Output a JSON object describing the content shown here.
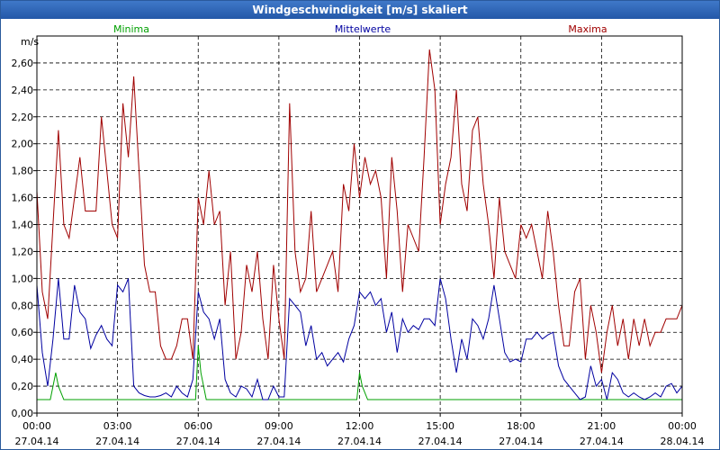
{
  "window": {
    "title": "Windgeschwindigkeit [m/s] skaliert"
  },
  "colors": {
    "minima": "#00a000",
    "mittelwerte": "#0000a0",
    "maxima": "#a00000",
    "grid": "#000000",
    "titlebar": "#2a5fae"
  },
  "chart_data": {
    "type": "line",
    "title": "Windgeschwindigkeit [m/s] skaliert",
    "ylabel": "m/s",
    "xlabel": "",
    "ylim": [
      0,
      2.8
    ],
    "xlim_hours": [
      0,
      24
    ],
    "grid": true,
    "legend_placement": "top",
    "y_ticks": [
      "0,00",
      "0,20",
      "0,40",
      "0,60",
      "0,80",
      "1,00",
      "1,20",
      "1,40",
      "1,60",
      "1,80",
      "2,00",
      "2,20",
      "2,40",
      "2,60"
    ],
    "x_ticks": [
      {
        "time": "00:00",
        "date": "27.04.14"
      },
      {
        "time": "03:00",
        "date": "27.04.14"
      },
      {
        "time": "06:00",
        "date": "27.04.14"
      },
      {
        "time": "09:00",
        "date": "27.04.14"
      },
      {
        "time": "12:00",
        "date": "27.04.14"
      },
      {
        "time": "15:00",
        "date": "27.04.14"
      },
      {
        "time": "18:00",
        "date": "27.04.14"
      },
      {
        "time": "21:00",
        "date": "27.04.14"
      },
      {
        "time": "00:00",
        "date": "28.04.14"
      }
    ],
    "series": [
      {
        "name": "Minima",
        "color": "#00a000",
        "x": [
          0,
          0.5,
          0.6,
          0.7,
          0.8,
          1.0,
          5.9,
          6.0,
          6.1,
          6.3,
          11.9,
          12.0,
          12.1,
          12.3,
          24
        ],
        "y": [
          0.1,
          0.1,
          0.2,
          0.3,
          0.2,
          0.1,
          0.1,
          0.5,
          0.3,
          0.1,
          0.1,
          0.3,
          0.2,
          0.1,
          0.1
        ]
      },
      {
        "name": "Mittelwerte",
        "color": "#0000a0",
        "x": [
          0,
          0.2,
          0.4,
          0.6,
          0.8,
          1.0,
          1.2,
          1.4,
          1.6,
          1.8,
          2.0,
          2.2,
          2.4,
          2.6,
          2.8,
          3.0,
          3.2,
          3.4,
          3.6,
          3.8,
          4.0,
          4.2,
          4.4,
          4.6,
          4.8,
          5.0,
          5.2,
          5.4,
          5.6,
          5.8,
          6.0,
          6.2,
          6.4,
          6.6,
          6.8,
          7.0,
          7.2,
          7.4,
          7.6,
          7.8,
          8.0,
          8.2,
          8.4,
          8.6,
          8.8,
          9.0,
          9.2,
          9.4,
          9.6,
          9.8,
          10.0,
          10.2,
          10.4,
          10.6,
          10.8,
          11.0,
          11.2,
          11.4,
          11.6,
          11.8,
          12.0,
          12.2,
          12.4,
          12.6,
          12.8,
          13.0,
          13.2,
          13.4,
          13.6,
          13.8,
          14.0,
          14.2,
          14.4,
          14.6,
          14.8,
          15.0,
          15.2,
          15.4,
          15.6,
          15.8,
          16.0,
          16.2,
          16.4,
          16.6,
          16.8,
          17.0,
          17.2,
          17.4,
          17.6,
          17.8,
          18.0,
          18.2,
          18.4,
          18.6,
          18.8,
          19.0,
          19.2,
          19.4,
          19.6,
          19.8,
          20.0,
          20.2,
          20.4,
          20.6,
          20.8,
          21.0,
          21.2,
          21.4,
          21.6,
          21.8,
          22.0,
          22.2,
          22.4,
          22.6,
          22.8,
          23.0,
          23.2,
          23.4,
          23.6,
          23.8,
          24.0
        ],
        "y": [
          0.95,
          0.45,
          0.2,
          0.55,
          1.0,
          0.55,
          0.55,
          0.95,
          0.75,
          0.7,
          0.48,
          0.58,
          0.65,
          0.55,
          0.5,
          0.95,
          0.9,
          1.0,
          0.2,
          0.15,
          0.13,
          0.12,
          0.12,
          0.13,
          0.15,
          0.12,
          0.2,
          0.15,
          0.12,
          0.25,
          0.9,
          0.75,
          0.7,
          0.55,
          0.7,
          0.25,
          0.15,
          0.12,
          0.2,
          0.18,
          0.12,
          0.25,
          0.1,
          0.1,
          0.2,
          0.12,
          0.12,
          0.85,
          0.8,
          0.75,
          0.5,
          0.65,
          0.4,
          0.45,
          0.35,
          0.4,
          0.45,
          0.38,
          0.55,
          0.65,
          0.9,
          0.85,
          0.9,
          0.8,
          0.85,
          0.6,
          0.75,
          0.45,
          0.7,
          0.6,
          0.65,
          0.62,
          0.7,
          0.7,
          0.65,
          1.0,
          0.85,
          0.55,
          0.3,
          0.55,
          0.4,
          0.7,
          0.65,
          0.55,
          0.7,
          0.95,
          0.7,
          0.45,
          0.38,
          0.4,
          0.38,
          0.55,
          0.55,
          0.6,
          0.55,
          0.58,
          0.6,
          0.35,
          0.25,
          0.2,
          0.15,
          0.1,
          0.12,
          0.35,
          0.2,
          0.25,
          0.1,
          0.3,
          0.25,
          0.15,
          0.12,
          0.15,
          0.12,
          0.1,
          0.12,
          0.15,
          0.12,
          0.2,
          0.22,
          0.15,
          0.2
        ]
      },
      {
        "name": "Maxima",
        "color": "#a00000",
        "x": [
          0,
          0.2,
          0.4,
          0.6,
          0.8,
          1.0,
          1.2,
          1.4,
          1.6,
          1.8,
          2.0,
          2.2,
          2.4,
          2.6,
          2.8,
          3.0,
          3.2,
          3.4,
          3.6,
          3.8,
          4.0,
          4.2,
          4.4,
          4.6,
          4.8,
          5.0,
          5.2,
          5.4,
          5.6,
          5.8,
          6.0,
          6.2,
          6.4,
          6.6,
          6.8,
          7.0,
          7.2,
          7.4,
          7.6,
          7.8,
          8.0,
          8.2,
          8.4,
          8.6,
          8.8,
          9.0,
          9.2,
          9.4,
          9.6,
          9.8,
          10.0,
          10.2,
          10.4,
          10.6,
          10.8,
          11.0,
          11.2,
          11.4,
          11.6,
          11.8,
          12.0,
          12.2,
          12.4,
          12.6,
          12.8,
          13.0,
          13.2,
          13.4,
          13.6,
          13.8,
          14.0,
          14.2,
          14.4,
          14.6,
          14.8,
          15.0,
          15.2,
          15.4,
          15.6,
          15.8,
          16.0,
          16.2,
          16.4,
          16.6,
          16.8,
          17.0,
          17.2,
          17.4,
          17.6,
          17.8,
          18.0,
          18.2,
          18.4,
          18.6,
          18.8,
          19.0,
          19.2,
          19.4,
          19.6,
          19.8,
          20.0,
          20.2,
          20.4,
          20.6,
          20.8,
          21.0,
          21.2,
          21.4,
          21.6,
          21.8,
          22.0,
          22.2,
          22.4,
          22.6,
          22.8,
          23.0,
          23.2,
          23.4,
          23.6,
          23.8,
          24.0
        ],
        "y": [
          1.65,
          0.9,
          0.7,
          1.4,
          2.1,
          1.4,
          1.3,
          1.6,
          1.9,
          1.5,
          1.5,
          1.5,
          2.2,
          1.8,
          1.4,
          1.3,
          2.3,
          1.9,
          2.5,
          1.8,
          1.1,
          0.9,
          0.9,
          0.5,
          0.4,
          0.4,
          0.5,
          0.7,
          0.7,
          0.4,
          1.6,
          1.4,
          1.8,
          1.4,
          1.5,
          0.8,
          1.2,
          0.4,
          0.6,
          1.1,
          0.9,
          1.2,
          0.7,
          0.4,
          1.1,
          0.7,
          0.4,
          2.3,
          1.2,
          0.9,
          1.0,
          1.5,
          0.9,
          1.0,
          1.1,
          1.2,
          0.9,
          1.7,
          1.5,
          2.0,
          1.6,
          1.9,
          1.7,
          1.8,
          1.6,
          1.0,
          1.9,
          1.5,
          0.9,
          1.4,
          1.3,
          1.2,
          1.9,
          2.7,
          2.4,
          1.4,
          1.7,
          1.9,
          2.4,
          1.7,
          1.5,
          2.1,
          2.2,
          1.7,
          1.4,
          1.0,
          1.6,
          1.2,
          1.1,
          1.0,
          1.4,
          1.3,
          1.4,
          1.2,
          1.0,
          1.5,
          1.2,
          0.8,
          0.5,
          0.5,
          0.9,
          1.0,
          0.4,
          0.8,
          0.6,
          0.3,
          0.6,
          0.8,
          0.5,
          0.7,
          0.4,
          0.7,
          0.5,
          0.7,
          0.5,
          0.6,
          0.6,
          0.7,
          0.7,
          0.7,
          0.8
        ]
      }
    ]
  }
}
